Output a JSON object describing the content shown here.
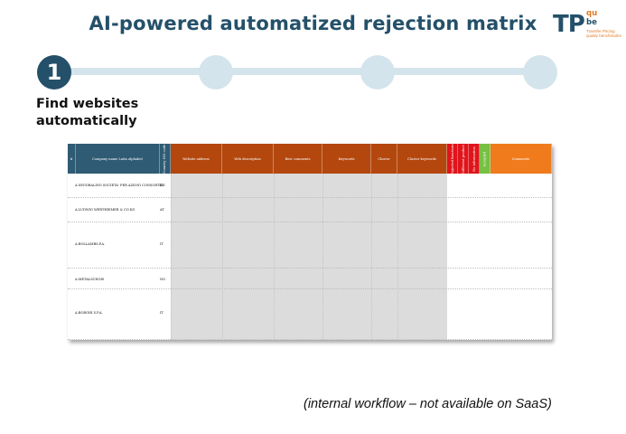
{
  "title": "AI-powered automatized rejection matrix",
  "logo": {
    "main": "TP",
    "qu": "qu",
    "be": "be",
    "sub": "Transfer Pricing quality benchmarks"
  },
  "stepper": {
    "active_number": "1",
    "active_label_line1": "Find websites",
    "active_label_line2": "automatically"
  },
  "matrix": {
    "headers": [
      {
        "label": "#",
        "color": "#2f5b74"
      },
      {
        "label": "Company name Latin alphabet",
        "color": "#2f5b74"
      },
      {
        "label": "Country ISO code",
        "color": "#2f5b74",
        "vertical": true
      },
      {
        "label": "Website address",
        "color": "#b3470e"
      },
      {
        "label": "Web description",
        "color": "#b3470e"
      },
      {
        "label": "Best comments",
        "color": "#b3470e"
      },
      {
        "label": "Keywords",
        "color": "#b3470e"
      },
      {
        "label": "Cluster",
        "color": "#b3470e"
      },
      {
        "label": "Cluster keywords",
        "color": "#b3470e"
      },
      {
        "label": "Rejected functions",
        "color": "#e0151b",
        "vertical": true
      },
      {
        "label": "Different product",
        "color": "#e0151b",
        "vertical": true
      },
      {
        "label": "No information",
        "color": "#e0151b",
        "vertical": true
      },
      {
        "label": "Accepted",
        "color": "#77c043",
        "vertical": true
      },
      {
        "label": "Comments",
        "color": "#ef7b1c"
      }
    ],
    "rows": [
      {
        "company": "A.SEGORALING SOCIETA' PER AZIONI CONSORTILE",
        "country": "IT"
      },
      {
        "company": "A.LUDWIG WERTHEIMER & CO KG",
        "country": "AT"
      },
      {
        "company": "A.BOLLAMBS.P.A.",
        "country": "IT"
      },
      {
        "company": "A.METALSCHOIS",
        "country": "NO"
      },
      {
        "company": "A.BORGHI S.P.A.",
        "country": "IT"
      }
    ]
  },
  "note": "(internal workflow – not available on SaaS)"
}
